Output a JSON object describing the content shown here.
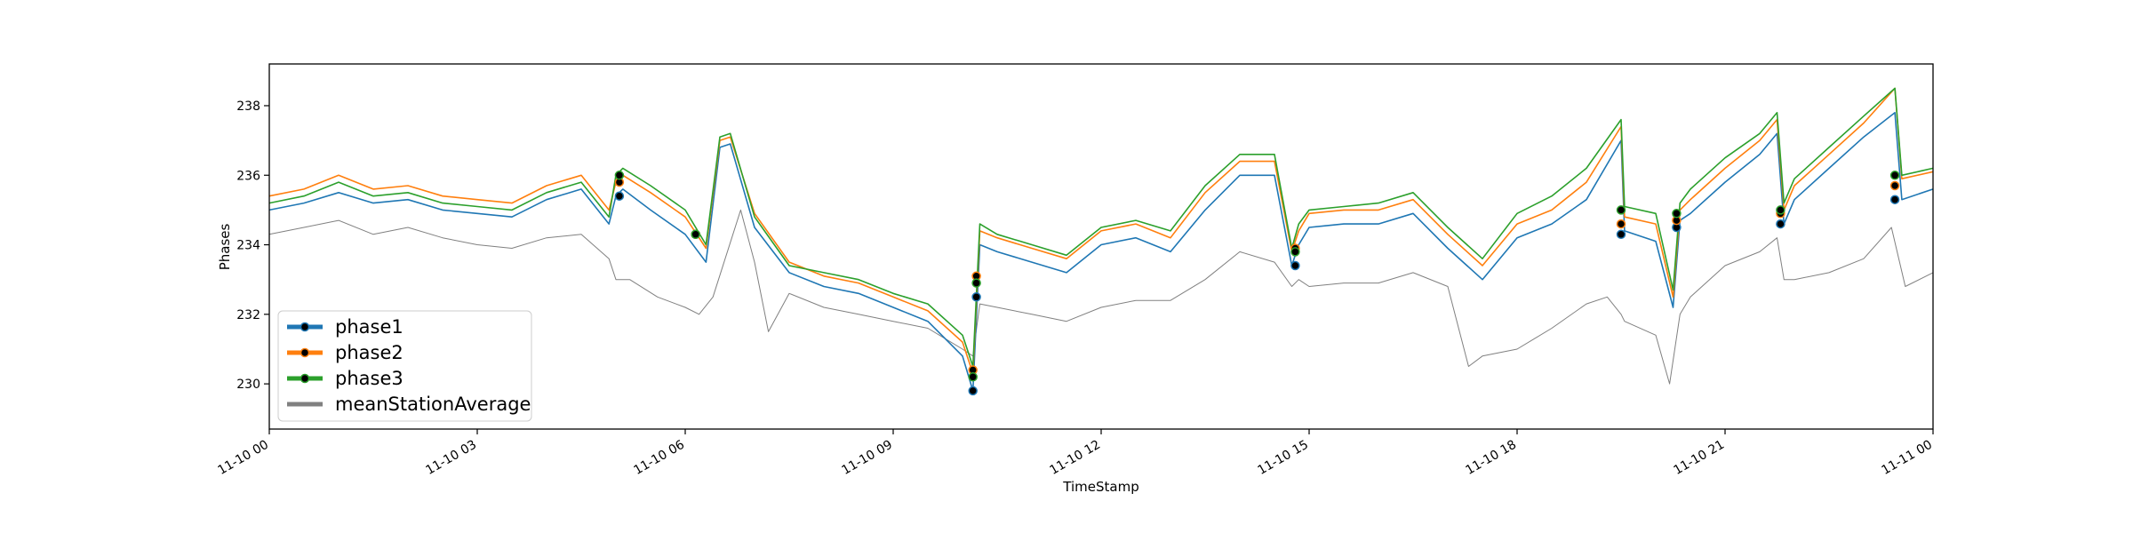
{
  "chart_data": {
    "type": "line",
    "xlabel": "TimeStamp",
    "ylabel": "Phases",
    "x_ticks": [
      "11-10 00",
      "11-10 03",
      "11-10 06",
      "11-10 09",
      "11-10 12",
      "11-10 15",
      "11-10 18",
      "11-10 21",
      "11-11 00"
    ],
    "xlim_hours": [
      0,
      24
    ],
    "y_ticks": [
      "230",
      "232",
      "234",
      "236",
      "238"
    ],
    "ylim": [
      228.7,
      239.2
    ],
    "grid": false,
    "legend": "lower-left",
    "series": [
      {
        "name": "phase1",
        "color": "#1f77b4",
        "x_hours": [
          0,
          0.5,
          1,
          1.5,
          2,
          2.5,
          3,
          3.5,
          4,
          4.5,
          4.9,
          5.0,
          5.1,
          5.5,
          6,
          6.3,
          6.5,
          6.65,
          7,
          7.5,
          8,
          8.5,
          9,
          9.5,
          10,
          10.15,
          10.25,
          10.5,
          11,
          11.5,
          12,
          12.5,
          13,
          13.5,
          14,
          14.5,
          14.75,
          14.85,
          15,
          15.5,
          16,
          16.5,
          17,
          17.5,
          18,
          18.5,
          19,
          19.5,
          19.55,
          20,
          20.25,
          20.35,
          20.5,
          21,
          21.5,
          21.75,
          21.85,
          22,
          22.5,
          23,
          23.45,
          23.55,
          24
        ],
        "values": [
          235.0,
          235.2,
          235.5,
          235.2,
          235.3,
          235.0,
          234.9,
          234.8,
          235.3,
          235.6,
          234.6,
          235.4,
          235.6,
          235.0,
          234.3,
          233.5,
          236.8,
          236.9,
          234.5,
          233.2,
          232.8,
          232.6,
          232.2,
          231.8,
          230.8,
          229.8,
          234.0,
          233.8,
          233.5,
          233.2,
          234.0,
          234.2,
          233.8,
          235.0,
          236.0,
          236.0,
          233.4,
          234.0,
          234.5,
          234.6,
          234.6,
          234.9,
          233.9,
          233.0,
          234.2,
          234.6,
          235.3,
          237.0,
          234.4,
          234.1,
          232.2,
          234.7,
          234.9,
          235.8,
          236.6,
          237.2,
          234.6,
          235.3,
          236.2,
          237.1,
          237.8,
          235.3,
          235.6
        ]
      },
      {
        "name": "phase2",
        "color": "#ff7f0e",
        "x_hours": [
          0,
          0.5,
          1,
          1.5,
          2,
          2.5,
          3,
          3.5,
          4,
          4.5,
          4.9,
          5.0,
          5.1,
          5.5,
          6,
          6.3,
          6.5,
          6.65,
          7,
          7.5,
          8,
          8.5,
          9,
          9.5,
          10,
          10.15,
          10.25,
          10.5,
          11,
          11.5,
          12,
          12.5,
          13,
          13.5,
          14,
          14.5,
          14.75,
          14.85,
          15,
          15.5,
          16,
          16.5,
          17,
          17.5,
          18,
          18.5,
          19,
          19.5,
          19.55,
          20,
          20.25,
          20.35,
          20.5,
          21,
          21.5,
          21.75,
          21.85,
          22,
          22.5,
          23,
          23.45,
          23.55,
          24
        ],
        "values": [
          235.4,
          235.6,
          236.0,
          235.6,
          235.7,
          235.4,
          235.3,
          235.2,
          235.7,
          236.0,
          235.0,
          235.8,
          236.0,
          235.5,
          234.8,
          233.9,
          237.0,
          237.1,
          234.9,
          233.5,
          233.1,
          232.9,
          232.5,
          232.1,
          231.2,
          230.3,
          234.4,
          234.2,
          233.9,
          233.6,
          234.4,
          234.6,
          234.2,
          235.5,
          236.4,
          236.4,
          233.8,
          234.4,
          234.9,
          235.0,
          235.0,
          235.3,
          234.3,
          233.4,
          234.6,
          235.0,
          235.8,
          237.4,
          234.8,
          234.6,
          232.5,
          235.0,
          235.3,
          236.2,
          237.0,
          237.6,
          235.0,
          235.7,
          236.6,
          237.5,
          238.5,
          235.9,
          236.1
        ]
      },
      {
        "name": "phase3",
        "color": "#2ca02c",
        "x_hours": [
          0,
          0.5,
          1,
          1.5,
          2,
          2.5,
          3,
          3.5,
          4,
          4.5,
          4.9,
          5.0,
          5.1,
          5.5,
          6,
          6.3,
          6.5,
          6.65,
          7,
          7.5,
          8,
          8.5,
          9,
          9.5,
          10,
          10.15,
          10.25,
          10.5,
          11,
          11.5,
          12,
          12.5,
          13,
          13.5,
          14,
          14.5,
          14.75,
          14.85,
          15,
          15.5,
          16,
          16.5,
          17,
          17.5,
          18,
          18.5,
          19,
          19.5,
          19.55,
          20,
          20.25,
          20.35,
          20.5,
          21,
          21.5,
          21.75,
          21.85,
          22,
          22.5,
          23,
          23.45,
          23.55,
          24
        ],
        "values": [
          235.2,
          235.4,
          235.8,
          235.4,
          235.5,
          235.2,
          235.1,
          235.0,
          235.5,
          235.8,
          234.8,
          236.0,
          236.2,
          235.7,
          235.0,
          234.0,
          237.1,
          237.2,
          234.8,
          233.4,
          233.2,
          233.0,
          232.6,
          232.3,
          231.4,
          230.5,
          234.6,
          234.3,
          234.0,
          233.7,
          234.5,
          234.7,
          234.4,
          235.7,
          236.6,
          236.6,
          233.9,
          234.6,
          235.0,
          235.1,
          235.2,
          235.5,
          234.5,
          233.6,
          234.9,
          235.4,
          236.2,
          237.6,
          235.1,
          234.9,
          232.7,
          235.2,
          235.6,
          236.5,
          237.2,
          237.8,
          235.2,
          235.9,
          236.8,
          237.7,
          238.5,
          236.0,
          236.2
        ]
      },
      {
        "name": "meanStationAverage",
        "color": "#808080",
        "x_hours": [
          0,
          0.5,
          1,
          1.5,
          2,
          2.5,
          3,
          3.5,
          4,
          4.5,
          4.9,
          5.0,
          5.2,
          5.6,
          6,
          6.2,
          6.4,
          6.8,
          7.0,
          7.2,
          7.5,
          8,
          8.5,
          9,
          9.5,
          10,
          10.15,
          10.25,
          10.5,
          11,
          11.5,
          12,
          12.5,
          13,
          13.5,
          14,
          14.5,
          14.75,
          14.85,
          15,
          15.5,
          16,
          16.5,
          17,
          17.3,
          17.5,
          18,
          18.5,
          19,
          19.3,
          19.5,
          19.55,
          20,
          20.2,
          20.35,
          20.5,
          21,
          21.5,
          21.75,
          21.85,
          22,
          22.5,
          23,
          23.4,
          23.6,
          24
        ],
        "values": [
          234.3,
          234.5,
          234.7,
          234.3,
          234.5,
          234.2,
          234.0,
          233.9,
          234.2,
          234.3,
          233.6,
          233.0,
          233.0,
          232.5,
          232.2,
          232.0,
          232.5,
          235.0,
          233.5,
          231.5,
          232.6,
          232.2,
          232.0,
          231.8,
          231.6,
          231.0,
          230.8,
          232.3,
          232.2,
          232.0,
          231.8,
          232.2,
          232.4,
          232.4,
          233.0,
          233.8,
          233.5,
          232.8,
          233.0,
          232.8,
          232.9,
          232.9,
          233.2,
          232.8,
          230.5,
          230.8,
          231.0,
          231.6,
          232.3,
          232.5,
          232.0,
          231.8,
          231.4,
          230.0,
          232.0,
          232.5,
          233.4,
          233.8,
          234.2,
          233.0,
          233.0,
          233.2,
          233.6,
          234.5,
          232.8,
          233.2
        ]
      }
    ],
    "anomaly_markers": [
      {
        "x_hour": 5.05,
        "phase1": 235.4,
        "phase2": 235.8,
        "phase3": 236.0
      },
      {
        "x_hour": 6.15,
        "phase1": 234.3,
        "phase2": 234.3,
        "phase3": 234.3
      },
      {
        "x_hour": 10.15,
        "phase1": 229.8,
        "phase2": 230.4,
        "phase3": 230.2
      },
      {
        "x_hour": 10.2,
        "phase1": 232.5,
        "phase2": 233.1,
        "phase3": 232.9
      },
      {
        "x_hour": 14.8,
        "phase1": 233.4,
        "phase2": 233.9,
        "phase3": 233.8
      },
      {
        "x_hour": 19.5,
        "phase1": 234.3,
        "phase2": 234.6,
        "phase3": 235.0
      },
      {
        "x_hour": 20.3,
        "phase1": 234.5,
        "phase2": 234.7,
        "phase3": 234.9
      },
      {
        "x_hour": 21.8,
        "phase1": 234.6,
        "phase2": 234.9,
        "phase3": 235.0
      },
      {
        "x_hour": 23.45,
        "phase1": 235.3,
        "phase2": 235.7,
        "phase3": 236.0
      }
    ]
  }
}
